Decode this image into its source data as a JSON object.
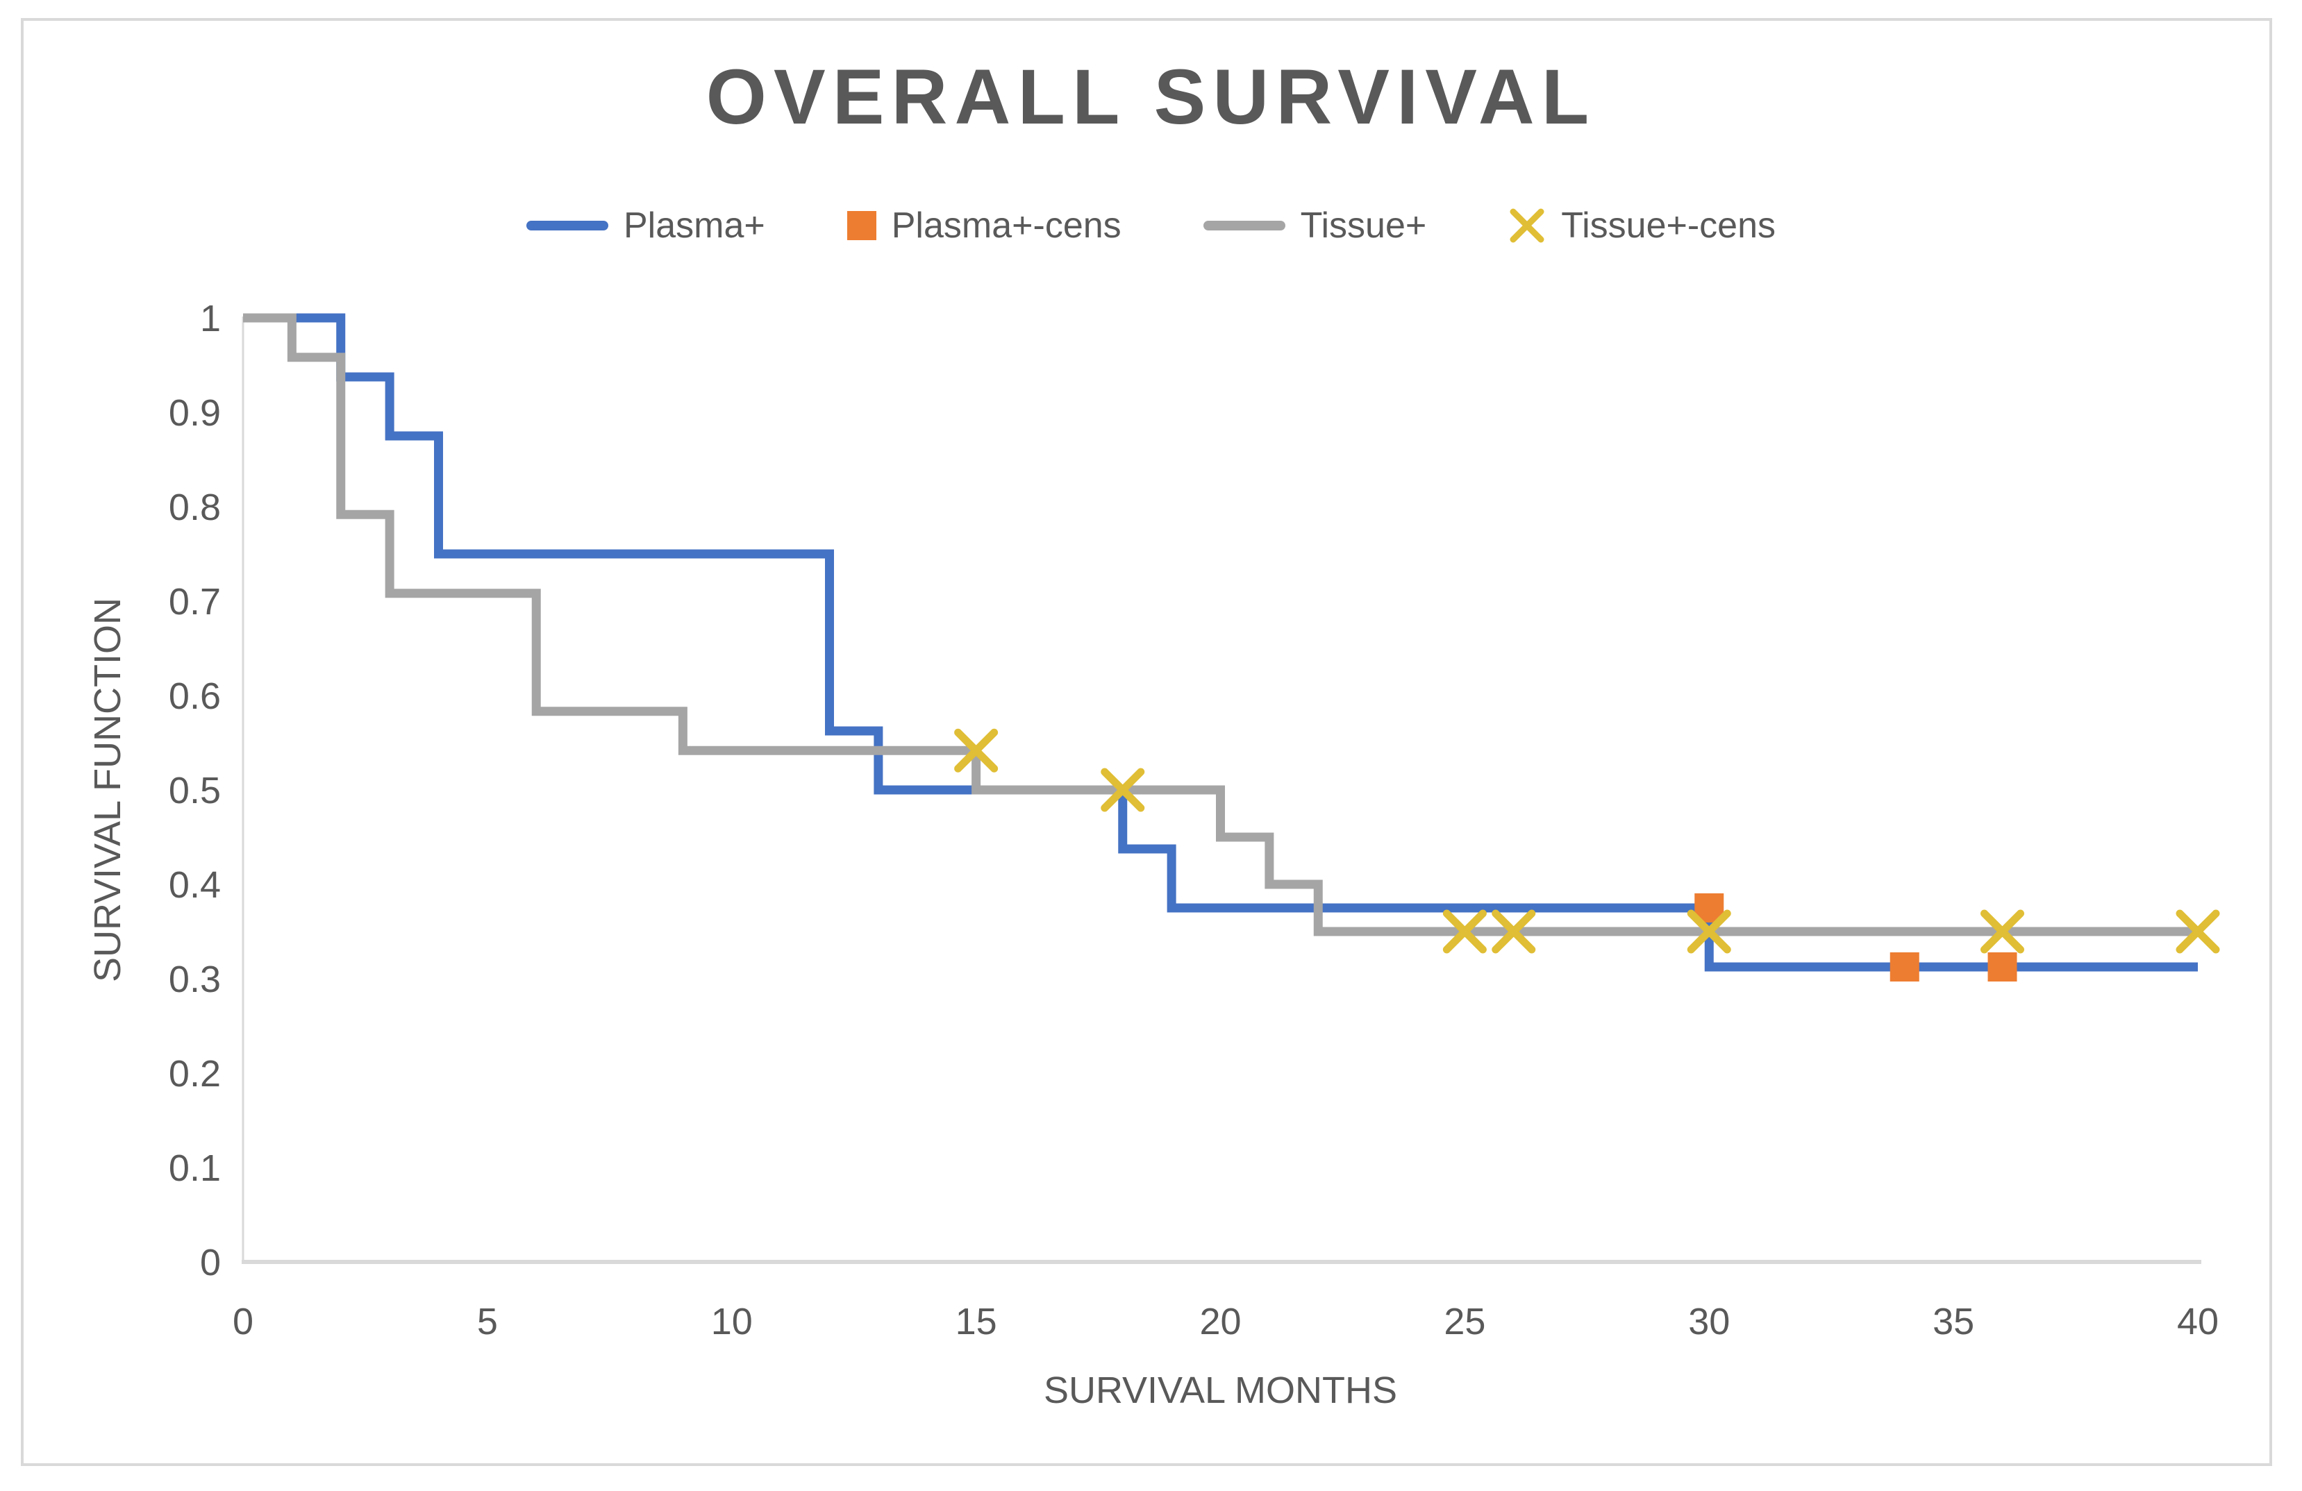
{
  "chart_data": {
    "type": "line",
    "subtype": "kaplan-meier-step",
    "title": "OVERALL SURVIVAL",
    "xlabel": "SURVIVAL MONTHS",
    "ylabel": "SURVIVAL FUNCTION",
    "xlim": [
      0,
      40
    ],
    "ylim": [
      0,
      1
    ],
    "xticks": [
      0,
      5,
      10,
      15,
      20,
      25,
      30,
      35,
      40
    ],
    "xtick_labels": [
      "0",
      "5",
      "10",
      "15",
      "20",
      "25",
      "30",
      "35",
      "40"
    ],
    "yticks": [
      0,
      0.1,
      0.2,
      0.3,
      0.4,
      0.5,
      0.6,
      0.7,
      0.8,
      0.9,
      1
    ],
    "ytick_labels": [
      "0",
      "0.1",
      "0.2",
      "0.3",
      "0.4",
      "0.5",
      "0.6",
      "0.7",
      "0.8",
      "0.9",
      "1"
    ],
    "grid": false,
    "legend_position": "top",
    "series": [
      {
        "name": "Plasma+",
        "kind": "step-line",
        "color": "#4472C4",
        "line_width": 13,
        "points": [
          [
            0,
            1
          ],
          [
            2,
            1
          ],
          [
            2,
            0.9375
          ],
          [
            3,
            0.9375
          ],
          [
            3,
            0.875
          ],
          [
            4,
            0.875
          ],
          [
            4,
            0.75
          ],
          [
            12,
            0.75
          ],
          [
            12,
            0.5625
          ],
          [
            13,
            0.5625
          ],
          [
            13,
            0.5
          ],
          [
            18,
            0.5
          ],
          [
            18,
            0.4375
          ],
          [
            19,
            0.4375
          ],
          [
            19,
            0.375
          ],
          [
            30,
            0.375
          ],
          [
            30,
            0.3125
          ],
          [
            40,
            0.3125
          ]
        ]
      },
      {
        "name": "Plasma+-cens",
        "kind": "markers",
        "marker": "square",
        "color": "#ED7D31",
        "marker_size": 42,
        "points": [
          [
            30,
            0.375
          ],
          [
            34,
            0.3125
          ],
          [
            36,
            0.3125
          ]
        ]
      },
      {
        "name": "Tissue+",
        "kind": "step-line",
        "color": "#A5A5A5",
        "line_width": 13,
        "points": [
          [
            0,
            1
          ],
          [
            1,
            1
          ],
          [
            1,
            0.9583
          ],
          [
            2,
            0.9583
          ],
          [
            2,
            0.7917
          ],
          [
            3,
            0.7917
          ],
          [
            3,
            0.7083
          ],
          [
            6,
            0.7083
          ],
          [
            6,
            0.5833
          ],
          [
            9,
            0.5833
          ],
          [
            9,
            0.5417
          ],
          [
            15,
            0.5417
          ],
          [
            15,
            0.5
          ],
          [
            20,
            0.5
          ],
          [
            20,
            0.45
          ],
          [
            21,
            0.45
          ],
          [
            21,
            0.4
          ],
          [
            22,
            0.4
          ],
          [
            22,
            0.35
          ],
          [
            40,
            0.35
          ]
        ]
      },
      {
        "name": "Tissue+-cens",
        "kind": "markers",
        "marker": "x",
        "color": "#E0BE35",
        "marker_size": 52,
        "points": [
          [
            15,
            0.5417
          ],
          [
            18,
            0.5
          ],
          [
            25,
            0.35
          ],
          [
            26,
            0.35
          ],
          [
            30,
            0.35
          ],
          [
            36,
            0.35
          ],
          [
            40,
            0.35
          ]
        ]
      }
    ]
  },
  "colors": {
    "background": "#FFFFFF",
    "frame_border": "#D9D9D9",
    "axis_line": "#D9D9D9",
    "text": "#595959"
  }
}
